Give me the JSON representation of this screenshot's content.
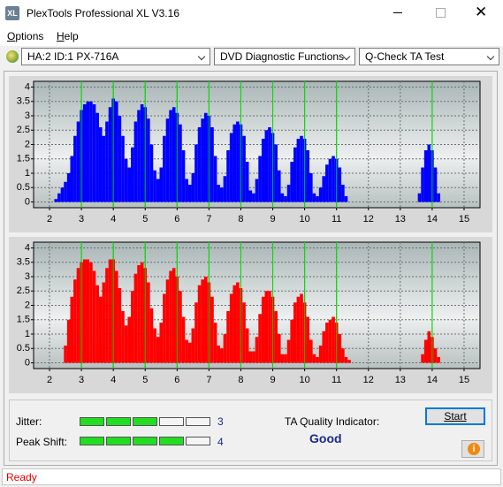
{
  "window": {
    "title": "PlexTools Professional XL V3.16"
  },
  "menu": [
    "Options",
    "Help"
  ],
  "toolbar": {
    "drive": "HA:2 ID:1  PX-716A",
    "function": "DVD Diagnostic Functions",
    "test": "Q-Check TA Test"
  },
  "chart_data": [
    {
      "type": "bar",
      "color": "#0000ff",
      "x": [
        2.2,
        2.3,
        2.4,
        2.5,
        2.6,
        2.7,
        2.8,
        2.9,
        3,
        3.1,
        3.2,
        3.3,
        3.4,
        3.5,
        3.6,
        3.7,
        3.8,
        3.9,
        4,
        4.1,
        4.2,
        4.3,
        4.4,
        4.5,
        4.6,
        4.7,
        4.8,
        4.9,
        5,
        5.1,
        5.2,
        5.3,
        5.4,
        5.5,
        5.6,
        5.7,
        5.8,
        5.9,
        6,
        6.1,
        6.2,
        6.3,
        6.4,
        6.5,
        6.6,
        6.7,
        6.8,
        6.9,
        7,
        7.1,
        7.2,
        7.3,
        7.4,
        7.5,
        7.6,
        7.7,
        7.8,
        7.9,
        8,
        8.1,
        8.2,
        8.3,
        8.4,
        8.5,
        8.6,
        8.7,
        8.8,
        8.9,
        9,
        9.1,
        9.2,
        9.3,
        9.4,
        9.5,
        9.6,
        9.7,
        9.8,
        9.9,
        10,
        10.1,
        10.2,
        10.3,
        10.4,
        10.5,
        10.6,
        10.7,
        10.8,
        10.9,
        11,
        11.1,
        11.2,
        11.3,
        11.4,
        11.5,
        11.6,
        11.7,
        11.8,
        11.9,
        12,
        12.1,
        12.2,
        12.3,
        12.4,
        12.5,
        12.6,
        12.7,
        12.8,
        12.9,
        13,
        13.1,
        13.2,
        13.3,
        13.4,
        13.5,
        13.6,
        13.7,
        13.8,
        13.9,
        14,
        14.1,
        14.2,
        14.3,
        14.4,
        14.5
      ],
      "values": [
        0.1,
        0.3,
        0.5,
        0.7,
        1.0,
        1.6,
        2.3,
        2.8,
        3.2,
        3.4,
        3.5,
        3.5,
        3.4,
        3.1,
        2.6,
        2.3,
        2.8,
        3.3,
        3.6,
        3.5,
        3.0,
        2.3,
        1.5,
        1.2,
        1.9,
        2.8,
        3.2,
        3.4,
        3.3,
        2.9,
        2.0,
        1.1,
        0.8,
        1.2,
        2.3,
        2.9,
        3.2,
        3.3,
        3.1,
        2.7,
        1.8,
        0.8,
        0.6,
        1.0,
        2.0,
        2.6,
        2.9,
        3.1,
        3.0,
        2.6,
        1.6,
        0.6,
        0.5,
        0.9,
        1.8,
        2.4,
        2.7,
        2.8,
        2.7,
        2.3,
        1.4,
        0.4,
        0.3,
        0.8,
        1.6,
        2.2,
        2.5,
        2.6,
        2.4,
        2.0,
        1.1,
        0.3,
        0.2,
        0.6,
        1.4,
        1.9,
        2.2,
        2.3,
        2.2,
        1.8,
        1.0,
        0.3,
        0.2,
        0.5,
        0.9,
        1.3,
        1.5,
        1.6,
        1.5,
        1.2,
        0.6,
        0.2,
        0,
        0,
        0,
        0,
        0,
        0,
        0,
        0,
        0,
        0,
        0,
        0,
        0,
        0,
        0,
        0,
        0,
        0,
        0,
        0,
        0,
        0,
        0.3,
        1.2,
        1.8,
        2.0,
        1.8,
        1.2,
        0.3,
        0,
        0,
        0
      ],
      "xlim": [
        1.5,
        15.5
      ],
      "xticks": [
        2,
        3,
        4,
        5,
        6,
        7,
        8,
        9,
        10,
        11,
        12,
        13,
        14,
        15
      ],
      "ylim": [
        -0.2,
        4.2
      ],
      "yticks": [
        0,
        0.5,
        1,
        1.5,
        2,
        2.5,
        3,
        3.5,
        4
      ],
      "grid": true,
      "highlight_x": [
        3,
        4,
        5,
        6,
        7,
        8,
        9,
        10,
        11,
        14
      ],
      "highlight_color": "#00dd00"
    },
    {
      "type": "bar",
      "color": "#ff0000",
      "x": [
        2.2,
        2.3,
        2.4,
        2.5,
        2.6,
        2.7,
        2.8,
        2.9,
        3,
        3.1,
        3.2,
        3.3,
        3.4,
        3.5,
        3.6,
        3.7,
        3.8,
        3.9,
        4,
        4.1,
        4.2,
        4.3,
        4.4,
        4.5,
        4.6,
        4.7,
        4.8,
        4.9,
        5,
        5.1,
        5.2,
        5.3,
        5.4,
        5.5,
        5.6,
        5.7,
        5.8,
        5.9,
        6,
        6.1,
        6.2,
        6.3,
        6.4,
        6.5,
        6.6,
        6.7,
        6.8,
        6.9,
        7,
        7.1,
        7.2,
        7.3,
        7.4,
        7.5,
        7.6,
        7.7,
        7.8,
        7.9,
        8,
        8.1,
        8.2,
        8.3,
        8.4,
        8.5,
        8.6,
        8.7,
        8.8,
        8.9,
        9,
        9.1,
        9.2,
        9.3,
        9.4,
        9.5,
        9.6,
        9.7,
        9.8,
        9.9,
        10,
        10.1,
        10.2,
        10.3,
        10.4,
        10.5,
        10.6,
        10.7,
        10.8,
        10.9,
        11,
        11.1,
        11.2,
        11.3,
        11.4,
        11.5,
        11.6,
        11.7,
        11.8,
        11.9,
        12,
        12.1,
        12.2,
        12.3,
        12.4,
        12.5,
        12.6,
        12.7,
        12.8,
        12.9,
        13,
        13.1,
        13.2,
        13.3,
        13.4,
        13.5,
        13.6,
        13.7,
        13.8,
        13.9,
        14,
        14.1,
        14.2,
        14.3,
        14.4,
        14.5
      ],
      "values": [
        0,
        0,
        0,
        0.6,
        1.5,
        2.3,
        2.9,
        3.3,
        3.5,
        3.6,
        3.6,
        3.5,
        3.2,
        2.7,
        2.3,
        2.8,
        3.3,
        3.6,
        3.6,
        3.2,
        2.6,
        1.8,
        1.3,
        1.6,
        2.5,
        3.1,
        3.4,
        3.5,
        3.3,
        2.8,
        1.9,
        1.2,
        0.9,
        1.4,
        2.4,
        2.9,
        3.2,
        3.3,
        3.0,
        2.5,
        1.6,
        0.8,
        0.7,
        1.2,
        2.1,
        2.7,
        2.9,
        3.0,
        2.8,
        2.3,
        1.4,
        0.6,
        0.5,
        1.0,
        1.8,
        2.4,
        2.7,
        2.8,
        2.6,
        2.1,
        1.2,
        0.4,
        0.4,
        0.9,
        1.7,
        2.3,
        2.5,
        2.5,
        2.3,
        1.8,
        1.0,
        0.3,
        0.3,
        0.8,
        1.5,
        2.1,
        2.3,
        2.4,
        2.1,
        1.6,
        0.8,
        0.3,
        0.2,
        0.6,
        1.1,
        1.4,
        1.5,
        1.6,
        1.4,
        1.0,
        0.5,
        0.2,
        0.1,
        0,
        0,
        0,
        0,
        0,
        0,
        0,
        0,
        0,
        0,
        0,
        0,
        0,
        0,
        0,
        0,
        0,
        0,
        0,
        0,
        0,
        0,
        0.3,
        0.8,
        1.1,
        0.9,
        0.5,
        0.2,
        0,
        0,
        0
      ],
      "xlim": [
        1.5,
        15.5
      ],
      "xticks": [
        2,
        3,
        4,
        5,
        6,
        7,
        8,
        9,
        10,
        11,
        12,
        13,
        14,
        15
      ],
      "ylim": [
        -0.2,
        4.2
      ],
      "yticks": [
        0,
        0.5,
        1,
        1.5,
        2,
        2.5,
        3,
        3.5,
        4
      ],
      "grid": true,
      "highlight_x": [
        3,
        4,
        5,
        6,
        7,
        8,
        9,
        10,
        11,
        14
      ],
      "highlight_color": "#00dd00"
    }
  ],
  "quality": {
    "jitter": {
      "label": "Jitter:",
      "value": 3,
      "max": 5
    },
    "peak_shift": {
      "label": "Peak Shift:",
      "value": 4,
      "max": 5
    },
    "indicator_label": "TA Quality Indicator:",
    "indicator": "Good",
    "start": "Start"
  },
  "status": "Ready"
}
